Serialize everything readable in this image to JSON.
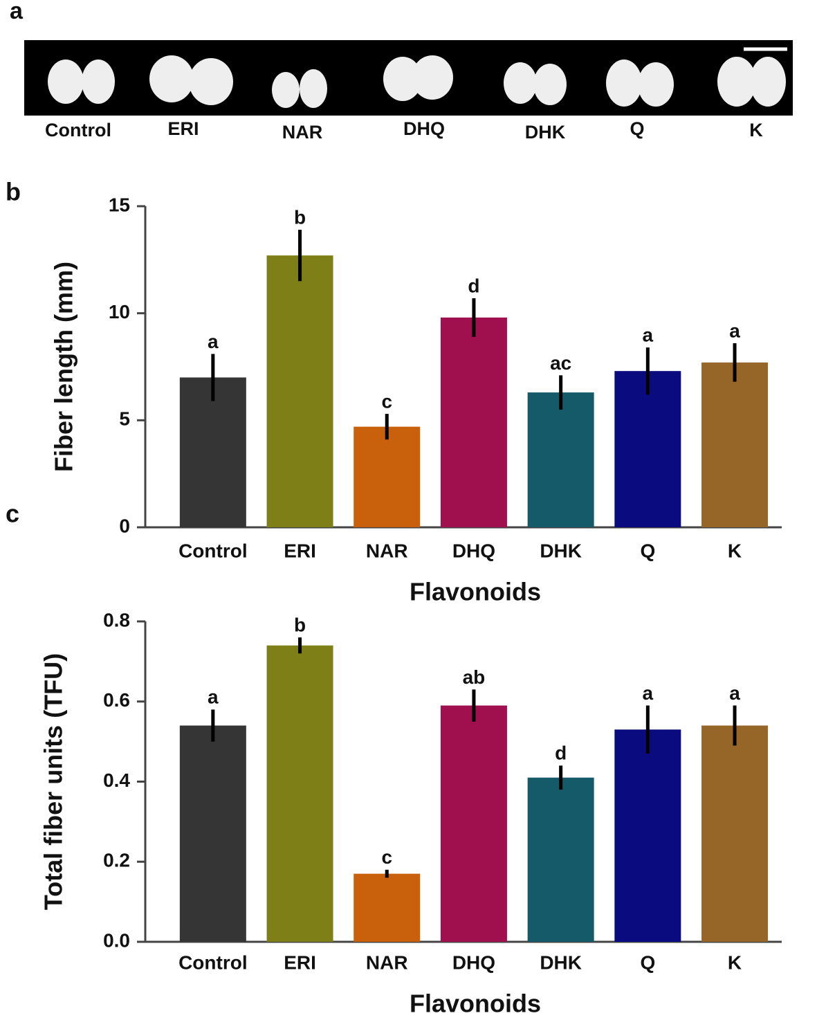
{
  "image_panel": {
    "panel_label": "a",
    "labels": [
      "Control",
      "ERI",
      "NAR",
      "DHQ",
      "DHK",
      "Q",
      "K"
    ]
  },
  "chart_data": [
    {
      "type": "bar",
      "panel_label": "b",
      "x_label": "Flavonoids",
      "y_label": "Fiber length (mm)",
      "categories": [
        "Control",
        "ERI",
        "NAR",
        "DHQ",
        "DHK",
        "Q",
        "K"
      ],
      "values": [
        7.0,
        12.7,
        4.7,
        9.8,
        6.3,
        7.3,
        7.7
      ],
      "errors": [
        1.1,
        1.2,
        0.6,
        0.9,
        0.8,
        1.1,
        0.9
      ],
      "letters": [
        "a",
        "b",
        "c",
        "d",
        "ac",
        "a",
        "a"
      ],
      "colors": [
        "#353535",
        "#7f7f18",
        "#c8600c",
        "#a0104f",
        "#155a68",
        "#0b0b80",
        "#956628"
      ],
      "ylim": [
        0,
        15
      ],
      "yticks": [
        0,
        5,
        10,
        15
      ]
    },
    {
      "type": "bar",
      "panel_label": "c",
      "x_label": "Flavonoids",
      "y_label": "Total fiber units (TFU)",
      "categories": [
        "Control",
        "ERI",
        "NAR",
        "DHQ",
        "DHK",
        "Q",
        "K"
      ],
      "values": [
        0.54,
        0.74,
        0.17,
        0.59,
        0.41,
        0.53,
        0.54
      ],
      "errors": [
        0.04,
        0.02,
        0.01,
        0.04,
        0.03,
        0.06,
        0.05
      ],
      "letters": [
        "a",
        "b",
        "c",
        "ab",
        "d",
        "a",
        "a"
      ],
      "colors": [
        "#353535",
        "#7f7f18",
        "#c8600c",
        "#a0104f",
        "#155a68",
        "#0b0b80",
        "#956628"
      ],
      "ylim": [
        0,
        0.8
      ],
      "yticks": [
        {
          "value": 0,
          "label": "0.0"
        },
        0.2,
        0.4,
        0.6,
        0.8
      ]
    }
  ]
}
